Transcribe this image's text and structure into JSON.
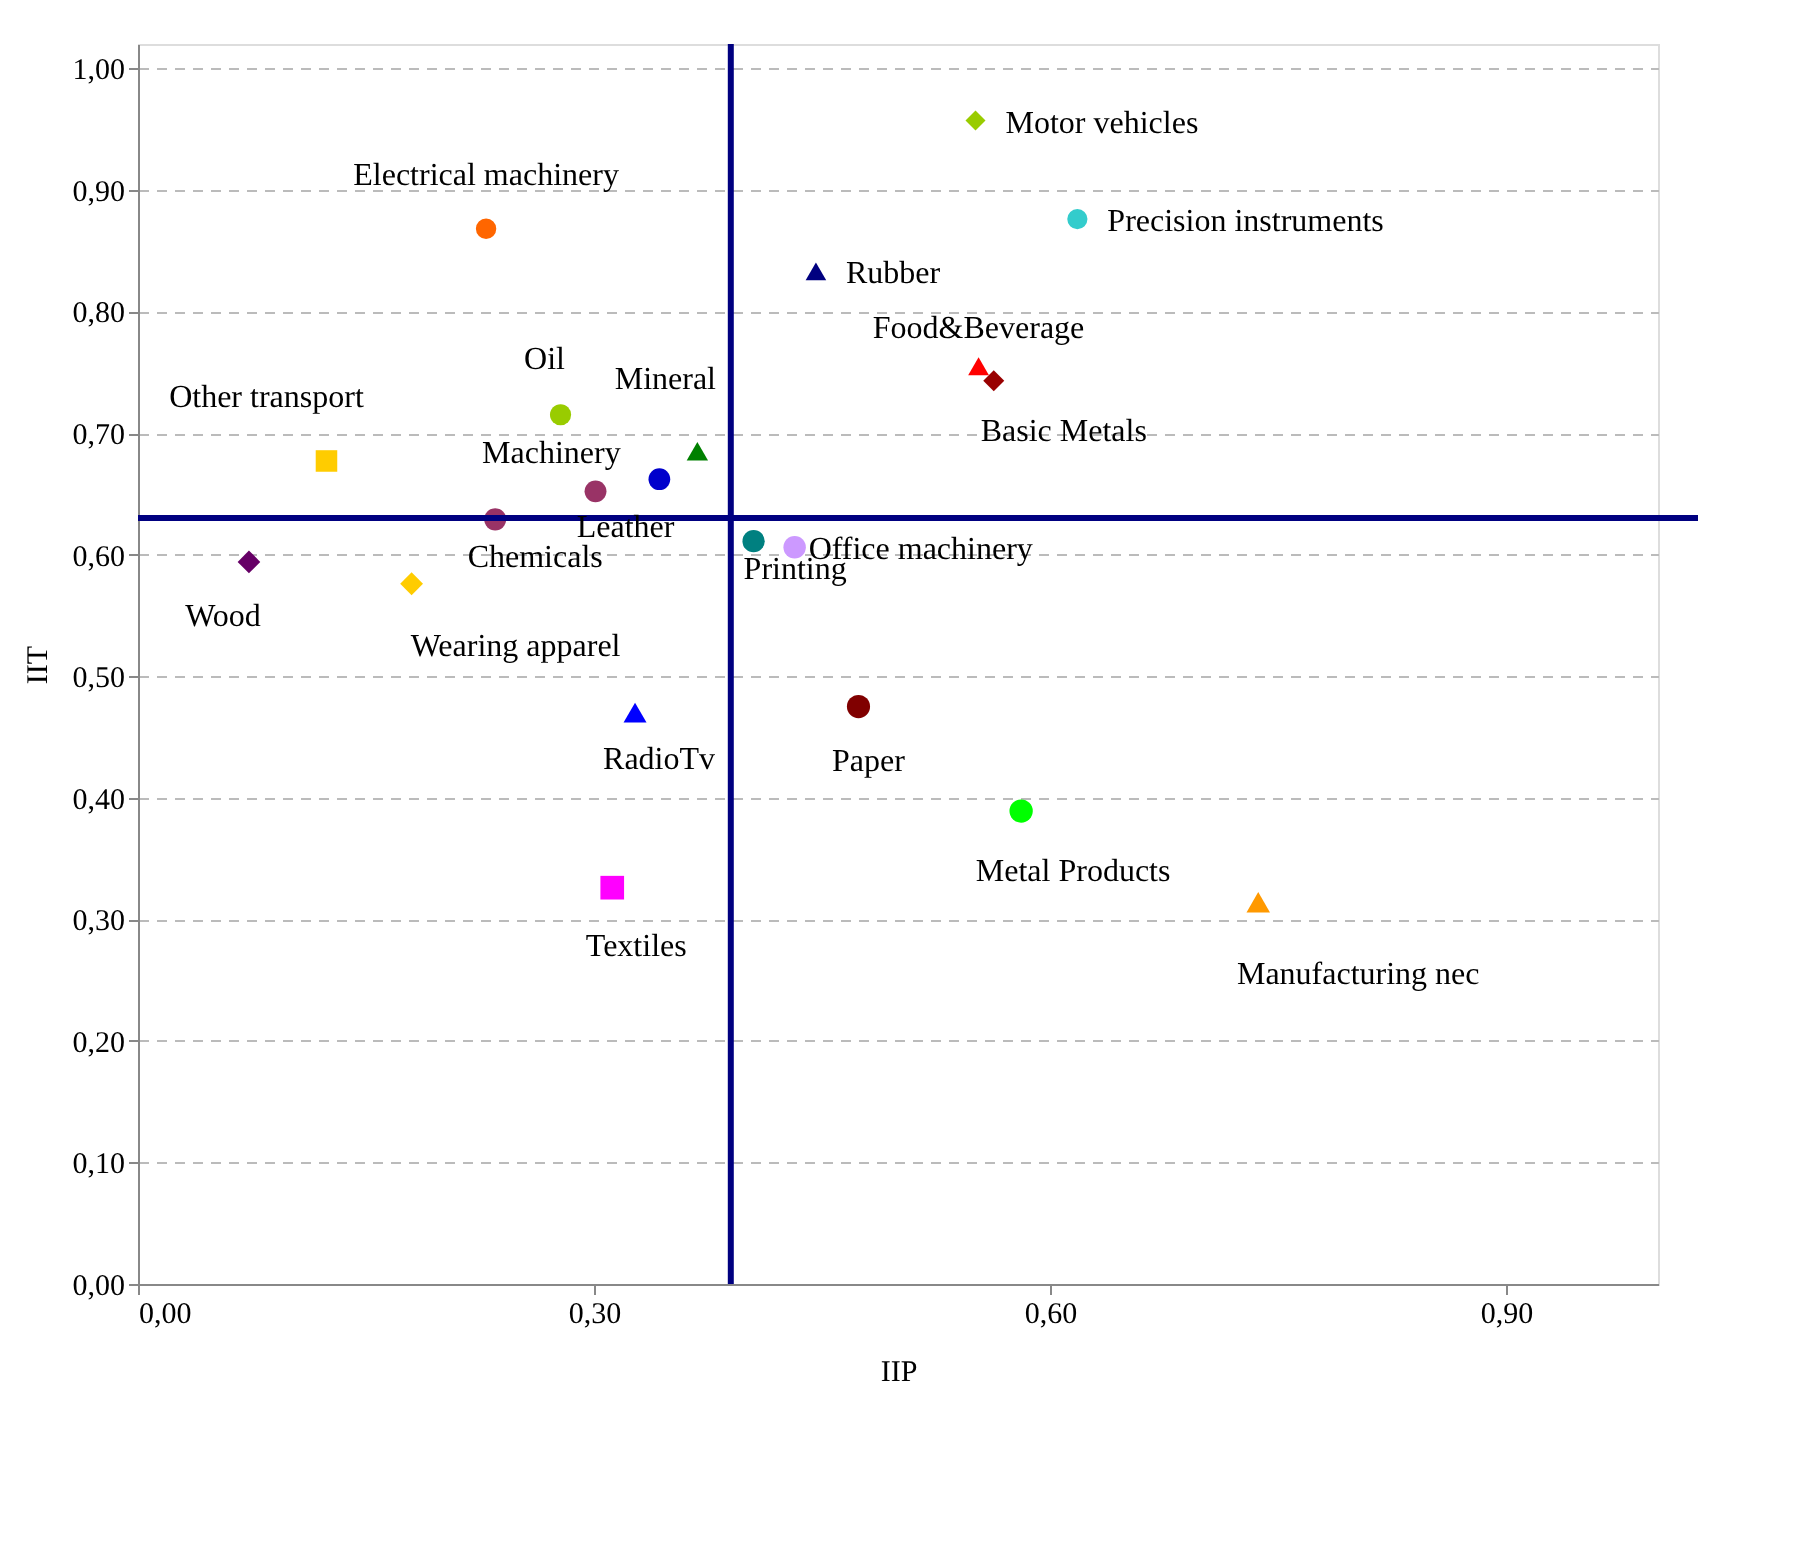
{
  "chart_data": {
    "type": "scatter",
    "xlabel": "IIP",
    "ylabel": "IIT",
    "xlim": [
      0,
      1
    ],
    "ylim": [
      0,
      1.02
    ],
    "xticks": [
      {
        "value": 0,
        "label": "0,00"
      },
      {
        "value": 0.3,
        "label": "0,30"
      },
      {
        "value": 0.6,
        "label": "0,60"
      },
      {
        "value": 0.9,
        "label": "0,90"
      }
    ],
    "yticks": [
      {
        "value": 0,
        "label": "0,00"
      },
      {
        "value": 0.1,
        "label": "0,10"
      },
      {
        "value": 0.2,
        "label": "0,20"
      },
      {
        "value": 0.3,
        "label": "0,30"
      },
      {
        "value": 0.4,
        "label": "0,40"
      },
      {
        "value": 0.5,
        "label": "0,50"
      },
      {
        "value": 0.6,
        "label": "0,60"
      },
      {
        "value": 0.7,
        "label": "0,70"
      },
      {
        "value": 0.8,
        "label": "0,80"
      },
      {
        "value": 0.9,
        "label": "0,90"
      },
      {
        "value": 1.0,
        "label": "1,00"
      }
    ],
    "grid": "y",
    "ref_lines": [
      {
        "axis": "x",
        "value": 0.39,
        "color": "#000080"
      },
      {
        "axis": "y",
        "value": 0.63,
        "color": "#000080"
      }
    ],
    "series": [
      {
        "name": "Motor vehicles",
        "color": "#99cc00",
        "marker": "diamond",
        "x": [
          0.551
        ],
        "values": [
          0.957
        ]
      },
      {
        "name": "Precision instruments",
        "color": "#33cccc",
        "marker": "circle",
        "x": [
          0.618
        ],
        "values": [
          0.876
        ]
      },
      {
        "name": "Electrical machinery",
        "color": "#ff6600",
        "marker": "circle",
        "x": [
          0.229
        ],
        "values": [
          0.868
        ]
      },
      {
        "name": "Rubber",
        "color": "#000080",
        "marker": "triangle",
        "x": [
          0.446
        ],
        "values": [
          0.833
        ]
      },
      {
        "name": "Food&Beverage",
        "color": "#ff0000",
        "marker": "triangle",
        "x": [
          0.553
        ],
        "values": [
          0.755
        ]
      },
      {
        "name": "Basic Metals",
        "color": "#990000",
        "marker": "diamond",
        "x": [
          0.563
        ],
        "values": [
          0.743
        ]
      },
      {
        "name": "Oil",
        "color": "#99cc00",
        "marker": "circle",
        "x": [
          0.278
        ],
        "values": [
          0.715
        ]
      },
      {
        "name": "Mineral",
        "color": "#008000",
        "marker": "triangle",
        "x": [
          0.368
        ],
        "values": [
          0.685
        ]
      },
      {
        "name": "Other transport",
        "color": "#ffcc00",
        "marker": "square",
        "x": [
          0.124
        ],
        "values": [
          0.677
        ]
      },
      {
        "name": "Machinery",
        "color": "#0000cc",
        "marker": "circle",
        "x": [
          0.343
        ],
        "values": [
          0.662
        ]
      },
      {
        "name": "Leather",
        "color": "#993366",
        "marker": "circle",
        "x": [
          0.301
        ],
        "values": [
          0.652
        ]
      },
      {
        "name": "Chemicals",
        "color": "#993366",
        "marker": "circle",
        "x": [
          0.235
        ],
        "values": [
          0.629
        ]
      },
      {
        "name": "Printing",
        "color": "#008080",
        "marker": "circle",
        "x": [
          0.405
        ],
        "values": [
          0.611
        ]
      },
      {
        "name": "Office machinery",
        "color": "#cc99ff",
        "marker": "circle",
        "x": [
          0.432
        ],
        "values": [
          0.606
        ]
      },
      {
        "name": "Wood",
        "color": "#660066",
        "marker": "diamond",
        "x": [
          0.073
        ],
        "values": [
          0.594
        ]
      },
      {
        "name": "Wearing apparel",
        "color": "#ffcc00",
        "marker": "diamond",
        "x": [
          0.18
        ],
        "values": [
          0.576
        ]
      },
      {
        "name": "RadioTv",
        "color": "#0000ff",
        "marker": "triangle",
        "x": [
          0.327
        ],
        "values": [
          0.47
        ]
      },
      {
        "name": "Paper",
        "color": "#800000",
        "marker": "circle",
        "x": [
          0.474
        ],
        "values": [
          0.475
        ]
      },
      {
        "name": "Metal Products",
        "color": "#00ff00",
        "marker": "circle",
        "x": [
          0.581
        ],
        "values": [
          0.389
        ]
      },
      {
        "name": "Manufacturing nec",
        "color": "#ff9900",
        "marker": "triangle",
        "x": [
          0.737
        ],
        "values": [
          0.314
        ]
      },
      {
        "name": "Textiles",
        "color": "#ff00ff",
        "marker": "square",
        "x": [
          0.312
        ],
        "values": [
          0.326
        ]
      }
    ]
  }
}
